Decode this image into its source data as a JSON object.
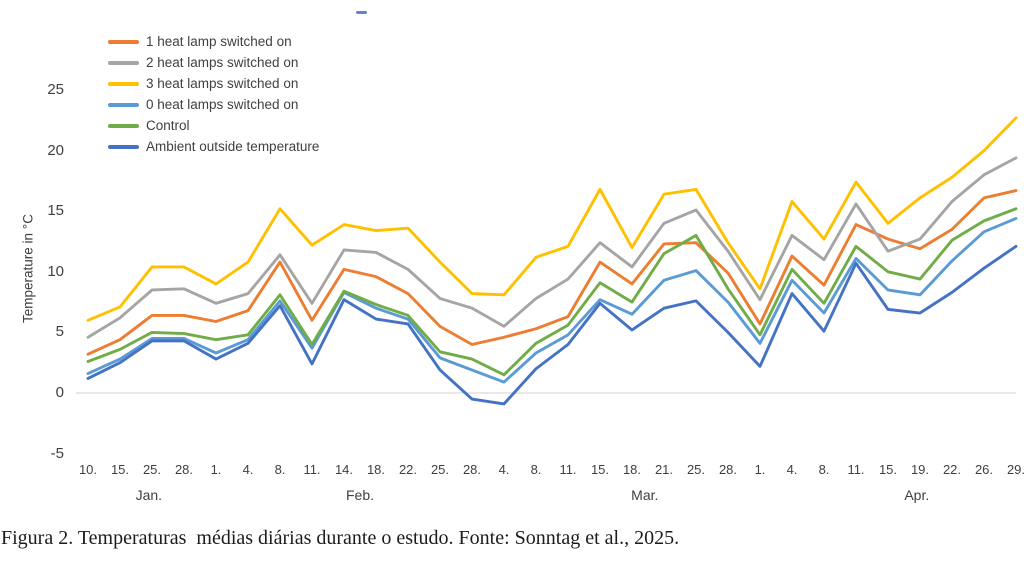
{
  "caption": "Figura 2. Temperaturas  médias diárias durante o estudo. Fonte: Sonntag et al., 2025.",
  "stray_mark_color": "#4472C4",
  "chart_data": {
    "type": "line",
    "title": "",
    "xlabel": "",
    "ylabel": "Temperature in °C",
    "ylim": [
      -5,
      25
    ],
    "yticks": [
      25,
      20,
      15,
      10,
      5,
      0,
      -5
    ],
    "grid": "horizontal line at 0 only",
    "gridline_color": "#d9d9d9",
    "legend_position": "top-left",
    "x_tick_labels": [
      "10.",
      "15.",
      "25.",
      "28.",
      "1.",
      "4.",
      "8.",
      "11.",
      "14.",
      "18.",
      "22.",
      "25.",
      "28.",
      "4.",
      "8.",
      "11.",
      "15.",
      "18.",
      "21.",
      "25.",
      "28.",
      "1.",
      "4.",
      "8.",
      "11.",
      "15.",
      "19.",
      "22.",
      "26.",
      "29."
    ],
    "months": [
      {
        "label": "Jan.",
        "center_index": 1.9,
        "tick_span": [
          0,
          3
        ]
      },
      {
        "label": "Feb.",
        "center_index": 8.5,
        "tick_span": [
          4,
          12
        ]
      },
      {
        "label": "Mar.",
        "center_index": 17.4,
        "tick_span": [
          13,
          20
        ]
      },
      {
        "label": "Apr.",
        "center_index": 25.9,
        "tick_span": [
          21,
          29
        ]
      }
    ],
    "series": [
      {
        "name": "1 heat lamp switched on",
        "color": "#ED7D31",
        "values": [
          3.2,
          4.4,
          6.4,
          6.4,
          5.9,
          6.8,
          10.8,
          6.0,
          10.2,
          9.6,
          8.2,
          5.5,
          4.0,
          4.6,
          5.3,
          6.3,
          10.8,
          9.0,
          12.3,
          12.4,
          9.9,
          5.7,
          11.3,
          8.9,
          13.9,
          12.7,
          11.9,
          13.5,
          16.1,
          16.7
        ]
      },
      {
        "name": "2 heat lamps switched on",
        "color": "#A5A5A5",
        "values": [
          4.6,
          6.2,
          8.5,
          8.6,
          7.4,
          8.2,
          11.4,
          7.4,
          11.8,
          11.6,
          10.2,
          7.8,
          7.0,
          5.5,
          7.8,
          9.4,
          12.4,
          10.4,
          14.0,
          15.1,
          11.7,
          7.7,
          13.0,
          11.0,
          15.6,
          11.7,
          12.7,
          15.8,
          18.0,
          19.4
        ]
      },
      {
        "name": "3 heat lamps switched on",
        "color": "#FFC000",
        "values": [
          6.0,
          7.1,
          10.4,
          10.4,
          9.0,
          10.8,
          15.2,
          12.2,
          13.9,
          13.4,
          13.6,
          10.8,
          8.2,
          8.1,
          11.2,
          12.1,
          16.8,
          12.0,
          16.4,
          16.8,
          12.4,
          8.6,
          15.8,
          12.7,
          17.4,
          14.0,
          16.1,
          17.8,
          20.0,
          22.7
        ]
      },
      {
        "name": "0 heat lamps switched on",
        "color": "#5B9BD5",
        "values": [
          1.6,
          2.8,
          4.5,
          4.5,
          3.3,
          4.4,
          7.6,
          3.7,
          8.3,
          7.0,
          6.1,
          2.9,
          1.9,
          0.9,
          3.3,
          4.8,
          7.7,
          6.5,
          9.3,
          10.1,
          7.5,
          4.1,
          9.3,
          6.6,
          11.1,
          8.5,
          8.1,
          10.9,
          13.3,
          14.4
        ]
      },
      {
        "name": "Control",
        "color": "#70AD47",
        "values": [
          2.6,
          3.6,
          5.0,
          4.9,
          4.4,
          4.8,
          8.1,
          4.0,
          8.4,
          7.3,
          6.4,
          3.4,
          2.8,
          1.5,
          4.1,
          5.6,
          9.1,
          7.5,
          11.5,
          13.0,
          8.6,
          4.8,
          10.2,
          7.4,
          12.1,
          10.0,
          9.4,
          12.6,
          14.2,
          15.2
        ]
      },
      {
        "name": "Ambient outside temperature",
        "color": "#4472C4",
        "values": [
          1.2,
          2.5,
          4.3,
          4.3,
          2.8,
          4.1,
          7.2,
          2.4,
          7.7,
          6.1,
          5.7,
          1.9,
          -0.5,
          -0.9,
          2.0,
          4.0,
          7.4,
          5.2,
          7.0,
          7.6,
          5.0,
          2.2,
          8.2,
          5.1,
          10.7,
          6.9,
          6.6,
          8.3,
          10.3,
          12.1
        ]
      }
    ]
  }
}
